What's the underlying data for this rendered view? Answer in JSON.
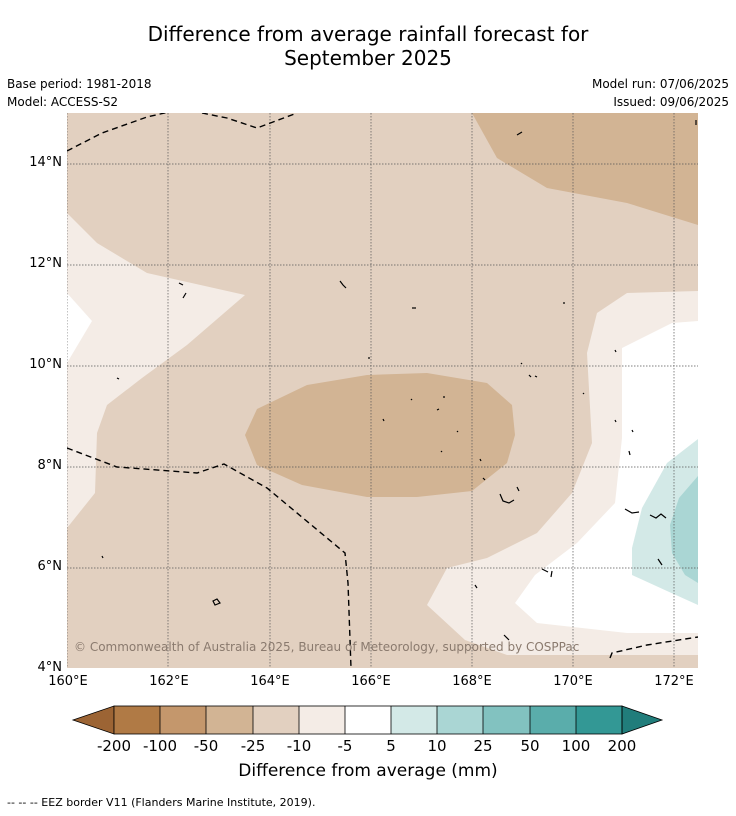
{
  "title": {
    "line1": "Difference from average rainfall forecast for",
    "line2": "September 2025"
  },
  "meta": {
    "base_period": "Base period: 1981-2018",
    "model": "Model: ACCESS-S2",
    "model_run": "Model run: 07/06/2025",
    "issued": "Issued: 09/06/2025"
  },
  "map": {
    "lat_labels": [
      "14°N",
      "12°N",
      "10°N",
      "8°N",
      "6°N",
      "4°N"
    ],
    "lon_labels": [
      "160°E",
      "162°E",
      "164°E",
      "166°E",
      "168°E",
      "170°E",
      "172°E"
    ],
    "copyright": "© Commonwealth of Australia 2025, Bureau of Meteorology, supported by COSPPac",
    "colors": {
      "below_200": "#9c6434",
      "m100_200": "#b07a45",
      "m50_100": "#c4976c",
      "m25_50": "#d2b494",
      "m10_25": "#e2d0c0",
      "m5_10": "#f4ece6",
      "neutral": "#ffffff",
      "p5_10": "#d3e9e7",
      "p10_25": "#aad6d4",
      "p25_50": "#82c2c0",
      "p50_100": "#5aadab",
      "p100_200": "#339895",
      "above_200": "#217d7b"
    }
  },
  "colorbar": {
    "labels": [
      "-200",
      "-100",
      "-50",
      "-25",
      "-10",
      "-5",
      "5",
      "10",
      "25",
      "50",
      "100",
      "200"
    ],
    "title": "Difference from average (mm)"
  },
  "footnote": "--  --  -- EEZ border V11 (Flanders Marine Institute, 2019)."
}
